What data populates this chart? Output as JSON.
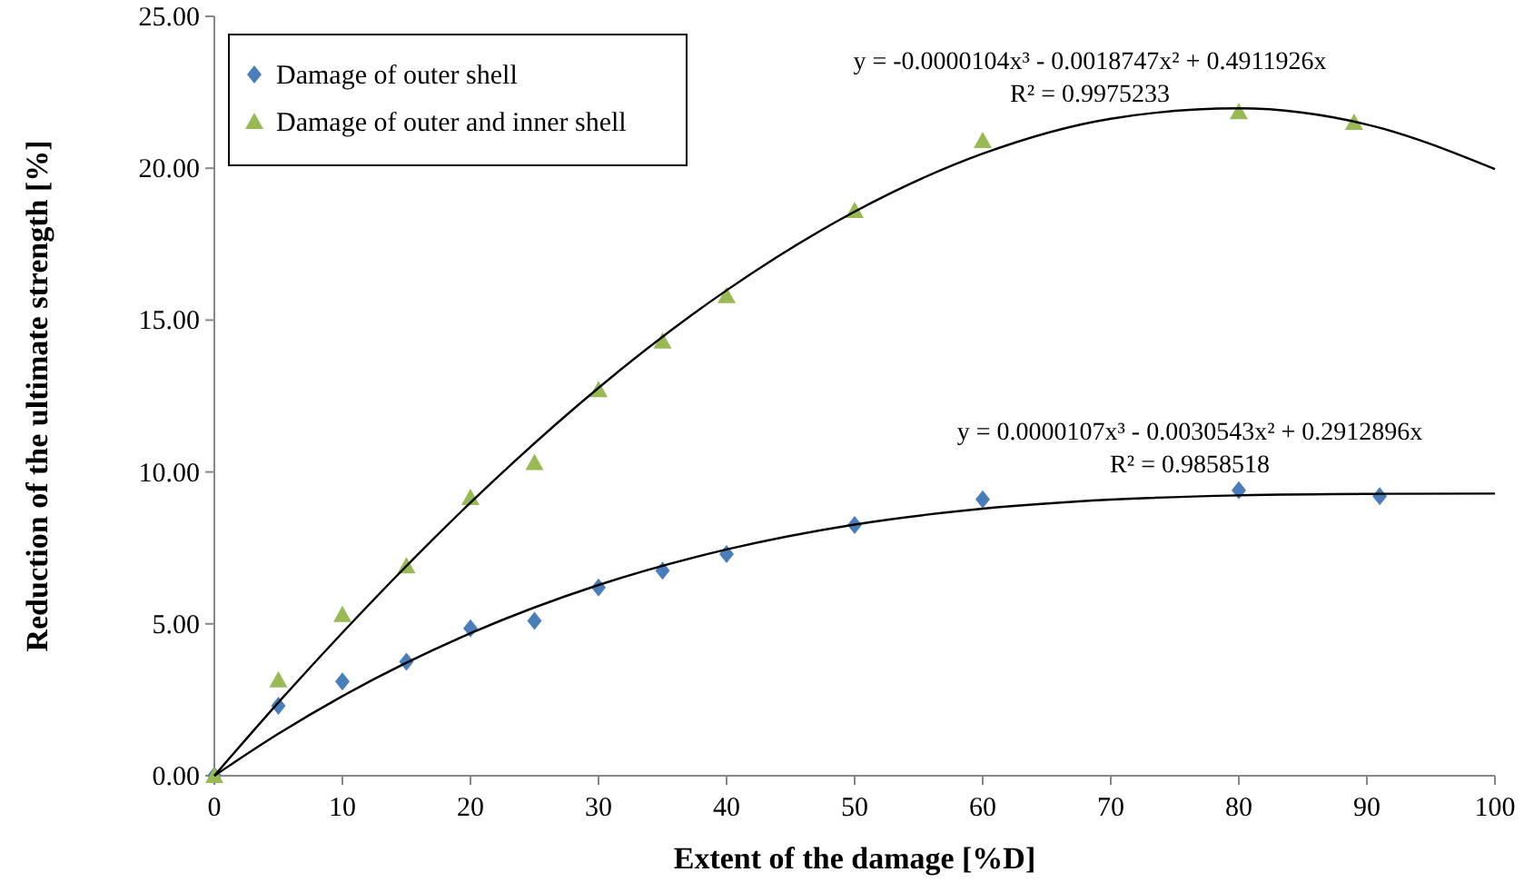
{
  "chart_data": {
    "type": "scatter",
    "xlabel": "Extent of the damage [%D]",
    "ylabel": "Reduction of the ultimate strength [%]",
    "xlim": [
      0,
      100
    ],
    "xticks": [
      0,
      10,
      20,
      30,
      40,
      50,
      60,
      70,
      80,
      90,
      100
    ],
    "ylim": [
      0,
      25
    ],
    "yticks": [
      {
        "value": 0,
        "label": "0.00"
      },
      {
        "value": 5,
        "label": "5.00"
      },
      {
        "value": 10,
        "label": "10.00"
      },
      {
        "value": 15,
        "label": "15.00"
      },
      {
        "value": 20,
        "label": "20.00"
      },
      {
        "value": 25,
        "label": "25.00"
      }
    ],
    "grid": false,
    "legend": "top left",
    "series": [
      {
        "name": "Damage of outer shell",
        "color": "#4a7ebb",
        "marker": "diamond",
        "x": [
          0,
          5,
          10,
          15,
          20,
          25,
          30,
          35,
          40,
          50,
          60,
          80,
          91
        ],
        "values": [
          0,
          2.3,
          3.1,
          3.75,
          4.85,
          5.1,
          6.2,
          6.75,
          7.3,
          8.25,
          9.1,
          9.4,
          9.2
        ]
      },
      {
        "name": "Damage of outer and inner shell",
        "color": "#98b954",
        "marker": "triangle",
        "x": [
          0,
          5,
          10,
          15,
          20,
          25,
          30,
          35,
          40,
          50,
          60,
          80,
          89
        ],
        "values": [
          0,
          3.15,
          5.3,
          6.9,
          9.15,
          10.3,
          12.7,
          14.3,
          15.8,
          18.6,
          20.9,
          21.85,
          21.5
        ]
      },
      {
        "type": "line",
        "color": "#000000",
        "marker": "none",
        "x": [
          0,
          5,
          10,
          20,
          30,
          40,
          50,
          60,
          70,
          80,
          90,
          100
        ],
        "values": [
          0,
          1.38,
          2.62,
          4.69,
          6.28,
          7.45,
          8.27,
          8.79,
          9.09,
          9.23,
          9.28,
          9.29
        ]
      },
      {
        "type": "line",
        "color": "#000000",
        "marker": "none",
        "x": [
          0,
          5,
          10,
          20,
          30,
          40,
          50,
          60,
          70,
          80,
          90,
          100
        ],
        "values": [
          0,
          2.41,
          4.71,
          8.99,
          12.77,
          15.98,
          18.57,
          20.48,
          21.63,
          21.97,
          21.44,
          19.97
        ]
      }
    ],
    "annotations": [
      "y = -0.0000104x³ - 0.0018747x² + 0.4911926x",
      "R² = 0.9975233",
      "y = 0.0000107x³ - 0.0030543x² + 0.2912896x",
      "R² = 0.9858518"
    ]
  }
}
